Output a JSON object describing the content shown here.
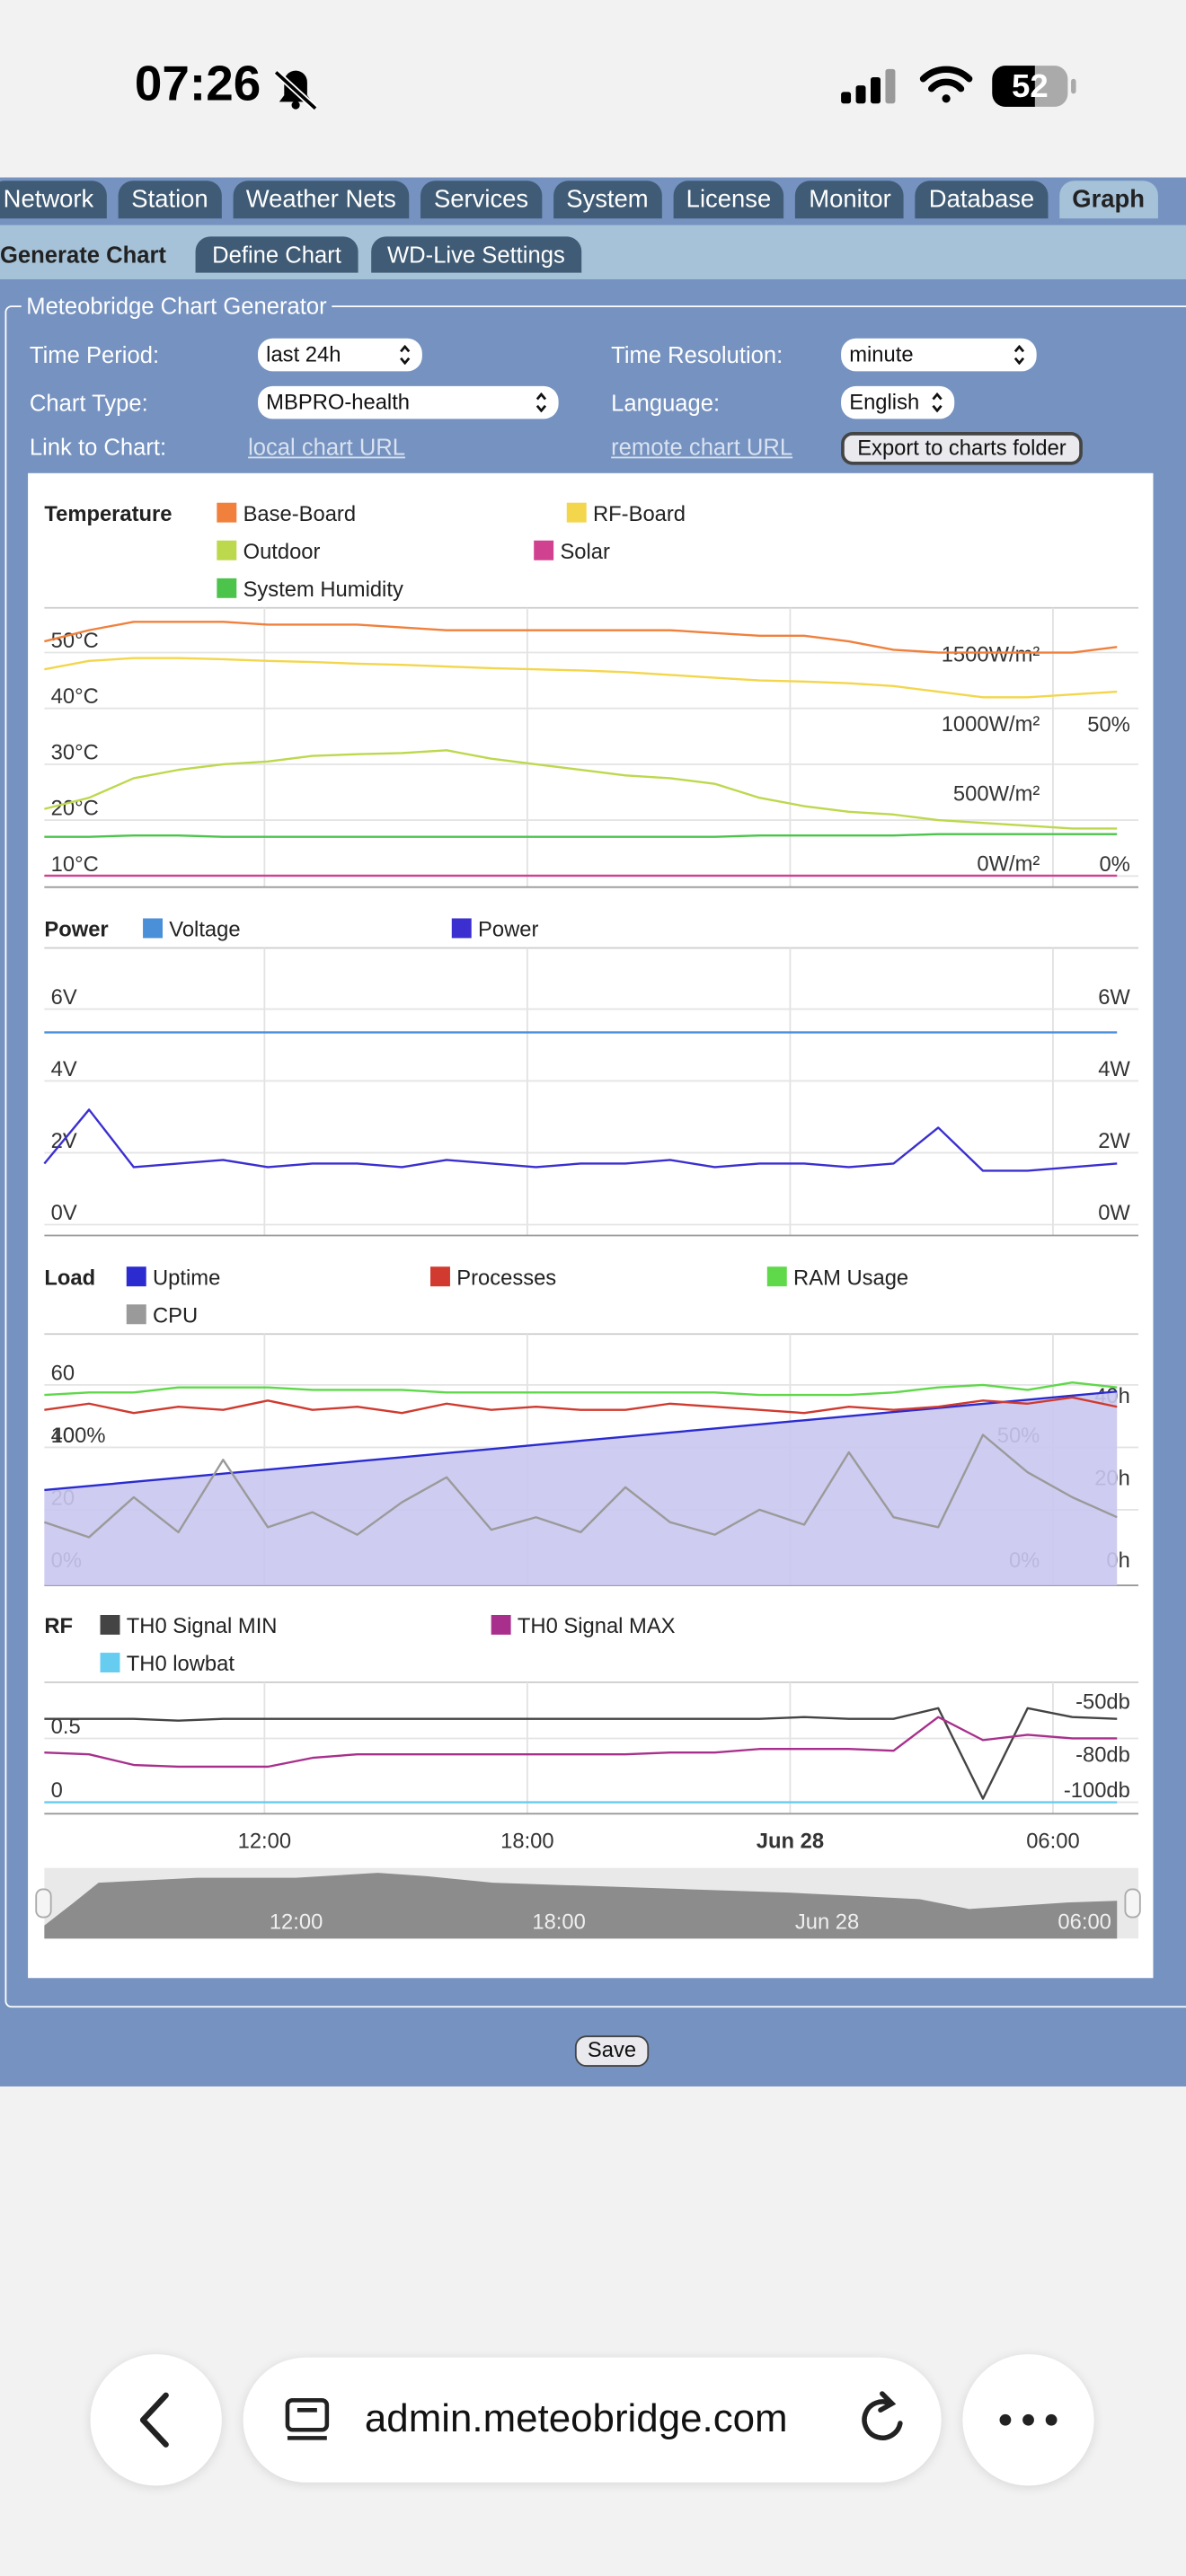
{
  "status_bar": {
    "time": "07:26",
    "battery": "52"
  },
  "tabs": [
    "Network",
    "Station",
    "Weather Nets",
    "Services",
    "System",
    "License",
    "Monitor",
    "Database",
    "Graph"
  ],
  "subtabs": [
    "Generate Chart",
    "Define Chart",
    "WD-Live Settings"
  ],
  "form": {
    "legend": "Meteobridge Chart Generator",
    "fields": [
      {
        "label": "Time Period:",
        "value": "last 24h"
      },
      {
        "label": "Time Resolution:",
        "value": "minute"
      },
      {
        "label": "Chart Type:",
        "value": "MBPRO-health"
      },
      {
        "label": "Language:",
        "value": "English"
      }
    ],
    "link_label": "Link to Chart:",
    "local_link": "local chart URL",
    "remote_link": "remote chart URL",
    "export_button": "Export to charts folder"
  },
  "chart_data": [
    {
      "type": "line",
      "title": "Temperature",
      "axes": [
        {
          "side": "left",
          "grid": true,
          "lim": [
            8,
            58
          ],
          "ticks": [
            {
              "value": 10,
              "label": "10°C"
            },
            {
              "value": 20,
              "label": "20°C"
            },
            {
              "value": 30,
              "label": "30°C"
            },
            {
              "value": 40,
              "label": "40°C"
            },
            {
              "value": 50,
              "label": "50°C"
            }
          ]
        },
        {
          "side": "right",
          "grid": false,
          "lim": [
            -82,
            1918
          ],
          "ticks": [
            {
              "value": 0,
              "label": "0W/m²"
            },
            {
              "value": 500,
              "label": "500W/m²"
            },
            {
              "value": 1000,
              "label": "1000W/m²"
            },
            {
              "value": 1500,
              "label": "1500W/m²"
            }
          ]
        },
        {
          "side": "right",
          "grid": false,
          "lim": [
            -4,
            96
          ],
          "ticks": [
            {
              "value": 0,
              "label": "0%"
            },
            {
              "value": 50,
              "label": "50%"
            }
          ]
        }
      ],
      "series": [
        {
          "name": "Base-Board",
          "color": "#f0803c",
          "axis": 0,
          "values": [
            52,
            54,
            55.5,
            55.5,
            55.5,
            55,
            55,
            55,
            54.5,
            54,
            54,
            54,
            54,
            54,
            54,
            53.5,
            53,
            53,
            52,
            50.5,
            50,
            50,
            50,
            50,
            51
          ]
        },
        {
          "name": "RF-Board",
          "color": "#f3d64c",
          "axis": 0,
          "values": [
            47,
            48.5,
            49,
            49,
            48.8,
            48.5,
            48.3,
            48,
            47.8,
            47.5,
            47.2,
            47,
            46.8,
            46.5,
            46,
            45.5,
            45,
            44.8,
            44.5,
            44,
            43,
            42,
            42,
            42.5,
            43
          ]
        },
        {
          "name": "Outdoor",
          "color": "#bcd84c",
          "axis": 0,
          "values": [
            22,
            24,
            27.5,
            29,
            30,
            30.5,
            31.5,
            31.8,
            32,
            32.5,
            31,
            30,
            29,
            28,
            27.5,
            26.5,
            24,
            22.5,
            21.5,
            21,
            20,
            19.5,
            19,
            18.5,
            18.5
          ]
        },
        {
          "name": "Solar",
          "color": "#d0418f",
          "axis": 1,
          "values": [
            0,
            0,
            0,
            0,
            0,
            0,
            0,
            0,
            0,
            0,
            0,
            0,
            0,
            0,
            0,
            0,
            0,
            0,
            0,
            0,
            0,
            0,
            0,
            0,
            0
          ]
        },
        {
          "name": "System Humidity",
          "color": "#4cc44c",
          "axis": 2,
          "values": [
            14,
            14,
            14.5,
            14.5,
            14,
            14,
            14,
            14,
            14,
            14,
            14,
            14,
            14,
            14,
            14,
            14,
            14.5,
            14.5,
            14.5,
            14.5,
            15,
            15,
            15,
            15,
            15
          ]
        }
      ]
    },
    {
      "type": "line",
      "title": "Power",
      "axes": [
        {
          "side": "left",
          "grid": true,
          "lim": [
            -0.3,
            7.7
          ],
          "ticks": [
            {
              "value": 0,
              "label": "0V"
            },
            {
              "value": 2,
              "label": "2V"
            },
            {
              "value": 4,
              "label": "4V"
            },
            {
              "value": 6,
              "label": "6V"
            }
          ]
        },
        {
          "side": "right",
          "grid": false,
          "lim": [
            -0.3,
            7.7
          ],
          "ticks": [
            {
              "value": 0,
              "label": "0W"
            },
            {
              "value": 2,
              "label": "2W"
            },
            {
              "value": 4,
              "label": "4W"
            },
            {
              "value": 6,
              "label": "6W"
            }
          ]
        }
      ],
      "series": [
        {
          "name": "Voltage",
          "color": "#4a90d9",
          "axis": 0,
          "values": [
            5.35,
            5.35,
            5.35,
            5.35,
            5.35,
            5.35,
            5.35,
            5.35,
            5.35,
            5.35,
            5.35,
            5.35,
            5.35,
            5.35,
            5.35,
            5.35,
            5.35,
            5.35,
            5.35,
            5.35,
            5.35,
            5.35,
            5.35,
            5.35,
            5.35
          ]
        },
        {
          "name": "Power",
          "color": "#3b2fd0",
          "axis": 1,
          "values": [
            1.7,
            3.2,
            1.6,
            1.7,
            1.8,
            1.6,
            1.7,
            1.7,
            1.6,
            1.8,
            1.7,
            1.6,
            1.7,
            1.7,
            1.8,
            1.6,
            1.7,
            1.7,
            1.6,
            1.7,
            2.7,
            1.5,
            1.5,
            1.6,
            1.7
          ]
        }
      ]
    },
    {
      "type": "line",
      "title": "Load",
      "axes": [
        {
          "side": "left",
          "grid": true,
          "lim": [
            -4.2,
            76.3
          ],
          "ticks": [
            20,
            40,
            60
          ]
        },
        {
          "side": "left",
          "grid": false,
          "lim": [
            -10.5,
            190.8
          ],
          "ticks": [
            {
              "value": 0,
              "label": "0%"
            },
            {
              "value": 100,
              "label": "100%"
            }
          ]
        },
        {
          "side": "right",
          "grid": false,
          "lim": [
            -5.3,
            95.4
          ],
          "ticks": [
            {
              "value": 0,
              "label": "0%"
            },
            {
              "value": 50,
              "label": "50%"
            }
          ]
        },
        {
          "side": "right",
          "grid": false,
          "lim": [
            -3.2,
            58
          ],
          "ticks": [
            {
              "value": 0,
              "label": "0h"
            },
            {
              "value": 20,
              "label": "20h"
            },
            {
              "value": 40,
              "label": "40h"
            }
          ]
        }
      ],
      "series": [
        {
          "name": "Uptime",
          "color": "#2b2bd0",
          "area": true,
          "area_color": "#c9c6ee",
          "axis": 3,
          "values": [
            20,
            21,
            22,
            23,
            24,
            25,
            26,
            27,
            28,
            29,
            30,
            31,
            32,
            33,
            34,
            35,
            36,
            37,
            38,
            39,
            40,
            41,
            42,
            43,
            44
          ]
        },
        {
          "name": "Processes",
          "color": "#d03a2f",
          "axis": 0,
          "values": [
            52,
            54,
            51,
            53,
            52,
            55,
            52,
            53,
            51,
            54,
            52,
            53,
            52,
            52,
            54,
            53,
            52,
            51,
            53,
            52,
            53,
            55,
            54,
            56,
            53
          ]
        },
        {
          "name": "RAM Usage",
          "color": "#5fd84a",
          "axis": 2,
          "values": [
            71,
            72,
            72,
            74,
            74,
            74,
            73,
            73,
            73,
            72,
            72,
            72,
            72,
            72,
            72,
            72,
            71,
            71,
            71,
            72,
            74,
            75,
            73,
            76,
            74
          ]
        },
        {
          "name": "CPU",
          "color": "#9a9a9a",
          "axis": 2,
          "values": [
            20,
            14,
            30,
            16,
            45,
            18,
            24,
            15,
            28,
            38,
            17,
            22,
            16,
            34,
            20,
            15,
            25,
            19,
            48,
            22,
            18,
            55,
            40,
            30,
            22
          ]
        }
      ]
    },
    {
      "type": "line",
      "title": "RF",
      "axes": [
        {
          "side": "left",
          "grid": true,
          "lim": [
            -0.09,
            0.94
          ],
          "ticks": [
            0,
            0.5
          ]
        },
        {
          "side": "right",
          "grid": false,
          "lim": [
            -106.5,
            -32.4
          ],
          "ticks": [
            {
              "value": -100,
              "label": "-100db"
            },
            {
              "value": -80,
              "label": "-80db"
            },
            {
              "value": -50,
              "label": "-50db"
            }
          ]
        }
      ],
      "series": [
        {
          "name": "TH0 Signal MIN",
          "color": "#444444",
          "axis": 1,
          "values": [
            -53,
            -53,
            -53,
            -54,
            -53,
            -53,
            -53,
            -53,
            -53,
            -53,
            -53,
            -53,
            -53,
            -53,
            -53,
            -53,
            -53,
            -52,
            -53,
            -53,
            -47,
            -98,
            -47,
            -52,
            -53
          ]
        },
        {
          "name": "TH0 Signal MAX",
          "color": "#a8308c",
          "axis": 1,
          "values": [
            -72,
            -73,
            -79,
            -80,
            -80,
            -80,
            -75,
            -73,
            -73,
            -73,
            -73,
            -73,
            -73,
            -73,
            -72,
            -72,
            -70,
            -70,
            -70,
            -71,
            -52,
            -65,
            -62,
            -64,
            -64
          ]
        },
        {
          "name": "TH0 lowbat",
          "color": "#66ccf0",
          "axis": 0,
          "values": [
            0,
            0,
            0,
            0,
            0,
            0,
            0,
            0,
            0,
            0,
            0,
            0,
            0,
            0,
            0,
            0,
            0,
            0,
            0,
            0,
            0,
            0,
            0,
            0,
            0
          ]
        }
      ]
    }
  ],
  "time_axis": {
    "ticks": [
      "12:00",
      "18:00",
      "Jun 28",
      "06:00"
    ]
  },
  "save_button": "Save",
  "browser": {
    "url": "admin.meteobridge.com"
  }
}
